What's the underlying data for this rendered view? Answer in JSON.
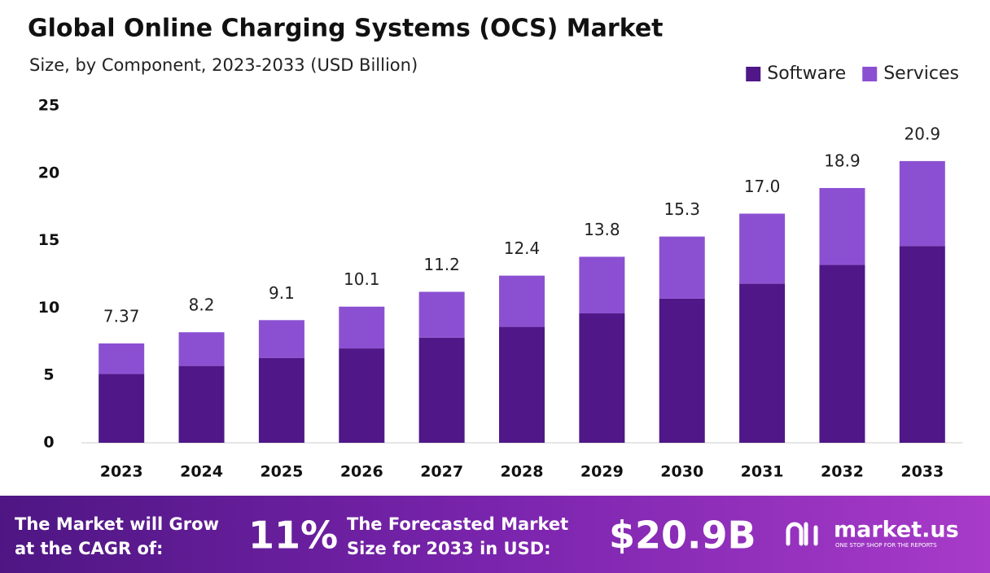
{
  "chart_data": {
    "type": "stacked-bar",
    "title": "Global Online Charging Systems (OCS) Market",
    "subtitle": "Size, by Component, 2023-2033 (USD Billion)",
    "categories": [
      "2023",
      "2024",
      "2025",
      "2026",
      "2027",
      "2028",
      "2029",
      "2030",
      "2031",
      "2032",
      "2033"
    ],
    "series": [
      {
        "name": "Software",
        "color": "#4f1787",
        "values": [
          5.1,
          5.7,
          6.3,
          7.0,
          7.8,
          8.6,
          9.6,
          10.7,
          11.8,
          13.2,
          14.6
        ]
      },
      {
        "name": "Services",
        "color": "#8b50d2",
        "values": [
          2.27,
          2.5,
          2.8,
          3.1,
          3.4,
          3.8,
          4.2,
          4.6,
          5.2,
          5.7,
          6.3
        ]
      }
    ],
    "totals": {
      "values": [
        7.37,
        8.2,
        9.1,
        10.1,
        11.2,
        12.4,
        13.8,
        15.3,
        17.0,
        18.9,
        20.9
      ],
      "value_labels": [
        "7.37",
        "8.2",
        "9.1",
        "10.1",
        "11.2",
        "12.4",
        "13.8",
        "15.3",
        "17.0",
        "18.9",
        "20.9"
      ]
    },
    "ylim": [
      0,
      25
    ],
    "yticks": [
      0,
      5,
      10,
      15,
      20,
      25
    ],
    "grid": false,
    "legend": "top-right"
  },
  "footer": {
    "cagr_text": [
      "The Market will Grow",
      "at the CAGR of:"
    ],
    "cagr_value": "11%",
    "forecast_text": [
      "The Forecasted Market",
      "Size for 2033 in USD:"
    ],
    "forecast_value": "$20.9B",
    "logo": "market.us",
    "logo_tagline": "ONE STOP SHOP FOR THE REPORTS"
  }
}
